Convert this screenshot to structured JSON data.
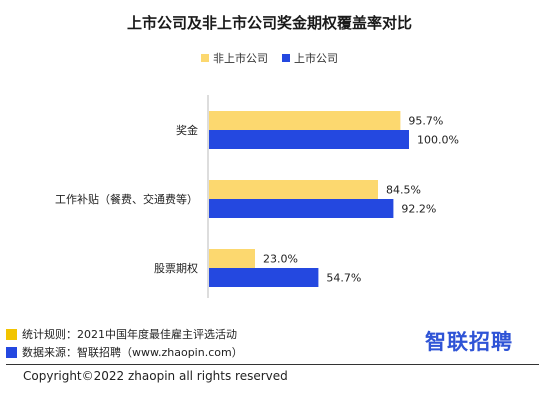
{
  "chart_data": {
    "type": "bar",
    "orientation": "horizontal",
    "title": "上市公司及非上市公司奖金期权覆盖率对比",
    "categories": [
      "奖金",
      "工作补贴（餐费、交通费等）",
      "股票期权"
    ],
    "series": [
      {
        "name": "非上市公司",
        "values": [
          95.7,
          84.5,
          23.0
        ],
        "labels": [
          "95.7%",
          "84.5%",
          "23.0%"
        ],
        "color": "#fcd86f"
      },
      {
        "name": "上市公司",
        "values": [
          100.0,
          92.2,
          54.7
        ],
        "labels": [
          "100.0%",
          "92.2%",
          "54.7%"
        ],
        "color": "#2448e0"
      }
    ],
    "xlim": [
      0,
      100
    ],
    "grid": false,
    "legend_position": "top-center"
  },
  "footer": {
    "note1": "统计规则：2021中国年度最佳雇主评选活动",
    "note2": "数据来源：智联招聘（www.zhaopin.com）",
    "note1_color": "#f2c400",
    "note2_color": "#2448e0",
    "brand": "智联招聘",
    "copyright": "Copyright©2022 zhaopin all rights reserved"
  }
}
